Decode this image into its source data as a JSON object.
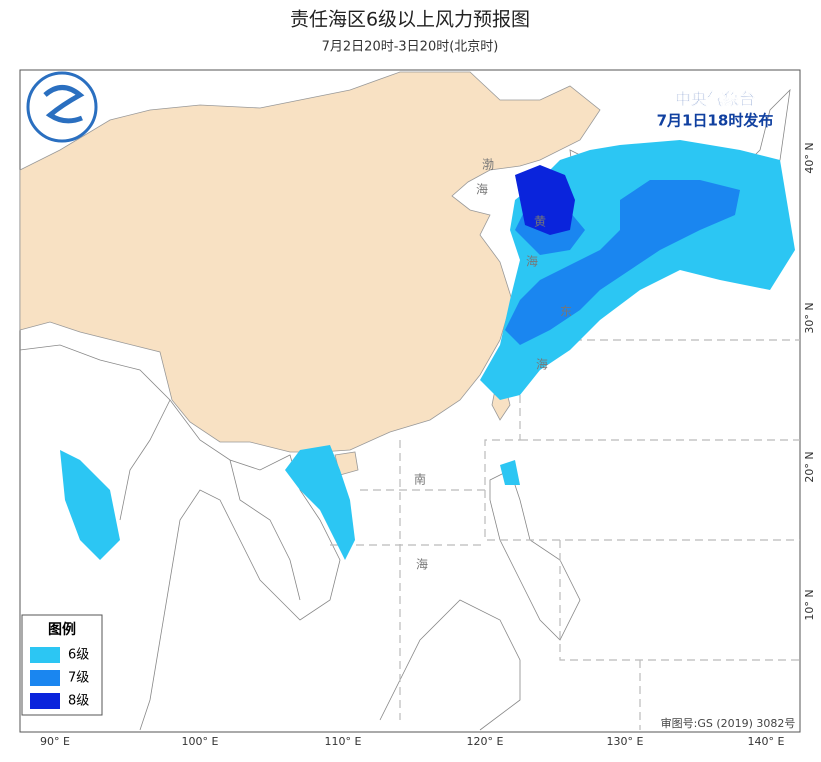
{
  "header": {
    "title": "责任海区6级以上风力预报图",
    "subtitle": "7月2日20时-3日20时(北京时)"
  },
  "issuer": {
    "name": "中央气象台",
    "time": "7月1日18时发布"
  },
  "legend": {
    "title": "图例",
    "items": [
      {
        "label": "6级",
        "color": "#2cc6f3"
      },
      {
        "label": "7级",
        "color": "#1a86f0"
      },
      {
        "label": "8级",
        "color": "#0a24dc"
      }
    ]
  },
  "longitude_labels": [
    "90° E",
    "100° E",
    "110° E",
    "120° E",
    "130° E",
    "140° E"
  ],
  "latitude_labels": [
    "40° N",
    "30° N",
    "20° N",
    "10° N"
  ],
  "sea_labels": {
    "bohai": [
      "渤",
      "海"
    ],
    "huanghai": [
      "黄",
      "海"
    ],
    "donghai": [
      "东",
      "海"
    ],
    "nanhai": [
      "南",
      "海"
    ]
  },
  "approval": "审图号:GS (2019) 3082号"
}
